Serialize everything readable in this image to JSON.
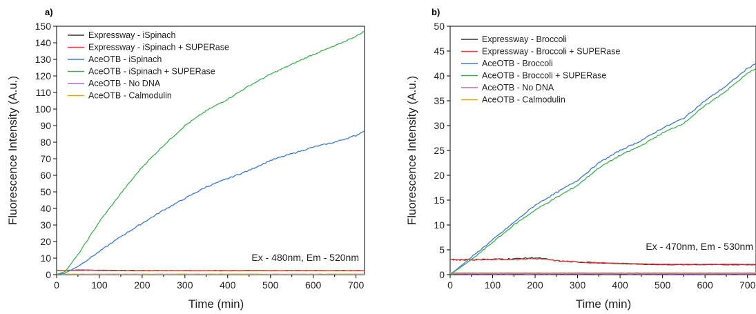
{
  "chart_data": [
    {
      "type": "line",
      "panel_label": "a)",
      "xlabel": "Time (min)",
      "ylabel": "Fluorescence Intensity (A.u.)",
      "xlim": [
        0,
        720
      ],
      "ylim": [
        0,
        150
      ],
      "xticks": [
        0,
        100,
        200,
        300,
        400,
        500,
        600,
        700
      ],
      "yticks": [
        0,
        10,
        20,
        30,
        40,
        50,
        60,
        70,
        80,
        90,
        100,
        110,
        120,
        130,
        140,
        150
      ],
      "annotation": "Ex - 480nm, Em - 520nm",
      "legend_position": "top-left",
      "grid": false,
      "series": [
        {
          "name": "Expressway - iSpinach",
          "color": "#333333",
          "x": [
            0,
            20,
            40,
            60,
            80,
            100,
            200,
            300,
            400,
            500,
            600,
            720
          ],
          "y": [
            2.5,
            2.6,
            2.7,
            2.7,
            2.6,
            2.5,
            2.4,
            2.4,
            2.4,
            2.4,
            2.4,
            2.4
          ]
        },
        {
          "name": "Expressway - iSpinach + SUPERase",
          "color": "#e8403a",
          "x": [
            0,
            20,
            40,
            60,
            80,
            100,
            200,
            300,
            400,
            500,
            600,
            720
          ],
          "y": [
            2.6,
            2.7,
            2.8,
            2.9,
            2.8,
            2.7,
            2.5,
            2.5,
            2.5,
            2.5,
            2.5,
            2.5
          ]
        },
        {
          "name": "AceOTB - iSpinach",
          "color": "#3a78d4",
          "x": [
            0,
            20,
            50,
            100,
            150,
            200,
            250,
            300,
            350,
            400,
            450,
            500,
            550,
            600,
            650,
            700,
            720
          ],
          "y": [
            0,
            1,
            5,
            14,
            23,
            31,
            39,
            46,
            53,
            58,
            63,
            69,
            73,
            77,
            80,
            84,
            87
          ]
        },
        {
          "name": "AceOTB - iSpinach + SUPERase",
          "color": "#3cb04e",
          "x": [
            0,
            20,
            50,
            100,
            150,
            200,
            250,
            300,
            350,
            400,
            450,
            500,
            550,
            600,
            650,
            700,
            720
          ],
          "y": [
            0,
            2,
            12,
            32,
            49,
            65,
            78,
            90,
            99,
            106,
            114,
            121,
            127,
            133,
            138,
            144,
            147
          ]
        },
        {
          "name": "AceOTB - No DNA",
          "color": "#b86cc8",
          "x": [
            0,
            720
          ],
          "y": [
            0.2,
            0.2
          ]
        },
        {
          "name": "AceOTB - Calmodulin",
          "color": "#d4a830",
          "x": [
            0,
            720
          ],
          "y": [
            0.3,
            0.3
          ]
        }
      ]
    },
    {
      "type": "line",
      "panel_label": "b)",
      "xlabel": "Time (min)",
      "ylabel": "Fluorescence Intensity (A.u.)",
      "xlim": [
        0,
        720
      ],
      "ylim": [
        0,
        50
      ],
      "xticks": [
        0,
        100,
        200,
        300,
        400,
        500,
        600,
        700
      ],
      "yticks": [
        0,
        5,
        10,
        15,
        20,
        25,
        30,
        35,
        40,
        45,
        50
      ],
      "annotation": "Ex - 470nm, Em - 530nm",
      "legend_position": "top-left",
      "grid": false,
      "series": [
        {
          "name": "Expressway - Broccoli",
          "color": "#333333",
          "x": [
            0,
            50,
            100,
            150,
            200,
            220,
            250,
            300,
            400,
            500,
            600,
            720
          ],
          "y": [
            3.0,
            3.0,
            3.1,
            3.2,
            3.4,
            3.2,
            2.8,
            2.5,
            2.2,
            2.0,
            2.0,
            2.0
          ]
        },
        {
          "name": "Expressway - Broccoli + SUPERase",
          "color": "#e8403a",
          "x": [
            0,
            50,
            100,
            150,
            200,
            220,
            250,
            300,
            400,
            500,
            600,
            720
          ],
          "y": [
            3.1,
            3.0,
            3.1,
            3.1,
            3.2,
            3.1,
            2.8,
            2.6,
            2.3,
            2.1,
            2.1,
            2.1
          ]
        },
        {
          "name": "AceOTB - Broccoli",
          "color": "#3a78d4",
          "x": [
            0,
            50,
            100,
            150,
            200,
            250,
            300,
            350,
            400,
            450,
            500,
            550,
            600,
            650,
            700,
            720
          ],
          "y": [
            0,
            3.5,
            7,
            10.5,
            14,
            16.5,
            19,
            22.5,
            25,
            27,
            29.5,
            31.5,
            35,
            38,
            41.5,
            42.5
          ]
        },
        {
          "name": "AceOTB - Broccoli + SUPERase",
          "color": "#3cb04e",
          "x": [
            0,
            50,
            100,
            150,
            200,
            250,
            300,
            350,
            400,
            450,
            500,
            550,
            600,
            650,
            700,
            720
          ],
          "y": [
            0,
            3.0,
            6.5,
            10,
            13,
            15.5,
            18,
            21.5,
            24,
            26,
            28.5,
            30.5,
            34,
            37,
            40.5,
            41.5
          ]
        },
        {
          "name": "AceOTB - No DNA",
          "color": "#b86cc8",
          "x": [
            0,
            720
          ],
          "y": [
            0.2,
            0.2
          ]
        },
        {
          "name": "AceOTB - Calmodulin",
          "color": "#d4a830",
          "x": [
            0,
            720
          ],
          "y": [
            0.4,
            0.4
          ]
        }
      ]
    }
  ]
}
